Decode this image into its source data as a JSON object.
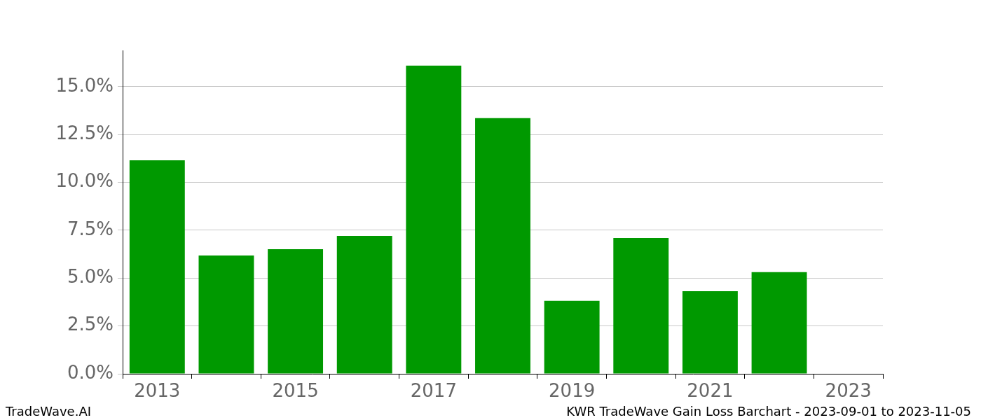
{
  "chart_data": {
    "type": "bar",
    "categories": [
      "2013",
      null,
      "2015",
      null,
      "2017",
      null,
      "2019",
      null,
      "2021",
      null,
      "2023"
    ],
    "values": [
      11.16,
      6.18,
      6.51,
      7.21,
      16.1,
      13.36,
      3.81,
      7.1,
      4.32,
      5.31,
      null
    ],
    "color": "#009900",
    "ylim": [
      0,
      16.9
    ],
    "yticks": [
      {
        "value": 0,
        "label": "0.0%"
      },
      {
        "value": 2.5,
        "label": "2.5%"
      },
      {
        "value": 5,
        "label": "5.0%"
      },
      {
        "value": 7.5,
        "label": "7.5%"
      },
      {
        "value": 10,
        "label": "10.0%"
      },
      {
        "value": 12.5,
        "label": "12.5%"
      },
      {
        "value": 15,
        "label": "15.0%"
      }
    ],
    "grid": true,
    "annotations": [
      "TradeWave.AI",
      "KWR TradeWave Gain Loss Barchart - 2023-09-01 to 2023-11-05"
    ]
  }
}
